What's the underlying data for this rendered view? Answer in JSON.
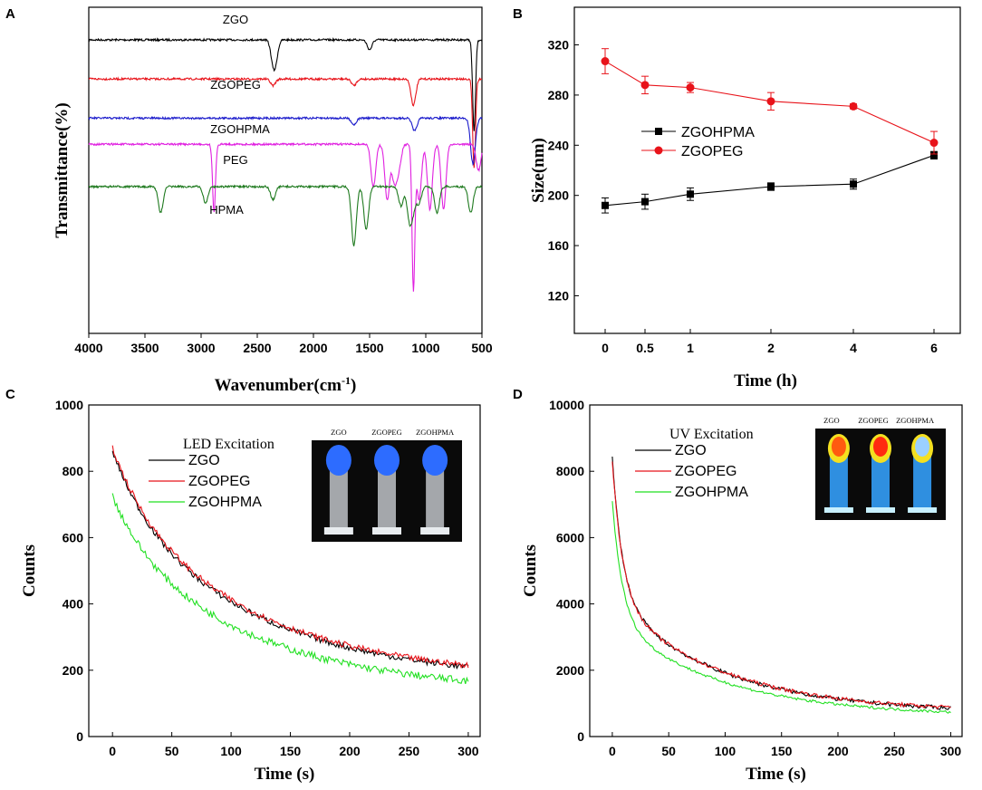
{
  "chart_data": [
    {
      "panel": "A",
      "type": "line",
      "title": "",
      "xlabel": "Wavenumber(cm",
      "xlabel_sup": "-1",
      "xlabel_close": ")",
      "ylabel": "Transmittance(%)",
      "xlim": [
        4000,
        500
      ],
      "x_ticks": [
        "4000",
        "3500",
        "3000",
        "2500",
        "2000",
        "1500",
        "1000",
        "500"
      ],
      "y_ticks_shown": false,
      "series": [
        {
          "name": "ZGO",
          "color": "#000000",
          "offset": 0.1,
          "dips": [
            [
              2360,
              0.06
            ],
            [
              2335,
              0.05
            ],
            [
              1500,
              0.03
            ],
            [
              570,
              0.28
            ]
          ]
        },
        {
          "name": "ZGOPEG",
          "color": "#e8131a",
          "offset": 0.22,
          "dips": [
            [
              2360,
              0.02
            ],
            [
              1110,
              0.08
            ],
            [
              1640,
              0.02
            ],
            [
              570,
              0.27
            ]
          ]
        },
        {
          "name": "ZGOHPMA",
          "color": "#1a1acb",
          "offset": 0.34,
          "dips": [
            [
              1100,
              0.04
            ],
            [
              1640,
              0.02
            ],
            [
              580,
              0.14
            ]
          ]
        },
        {
          "name": "PEG",
          "color": "#e020e0",
          "offset": 0.42,
          "dips": [
            [
              2885,
              0.21
            ],
            [
              1467,
              0.13
            ],
            [
              1343,
              0.17
            ],
            [
              1280,
              0.11
            ],
            [
              1240,
              0.07
            ],
            [
              1110,
              0.44
            ],
            [
              1060,
              0.17
            ],
            [
              963,
              0.2
            ],
            [
              842,
              0.2
            ],
            [
              530,
              0.08
            ]
          ]
        },
        {
          "name": "HPMA",
          "color": "#1f7a1f",
          "offset": 0.55,
          "dips": [
            [
              3360,
              0.08
            ],
            [
              2960,
              0.05
            ],
            [
              2360,
              0.04
            ],
            [
              1640,
              0.18
            ],
            [
              1530,
              0.13
            ],
            [
              1220,
              0.06
            ],
            [
              1145,
              0.1
            ],
            [
              1110,
              0.06
            ],
            [
              1060,
              0.05
            ],
            [
              900,
              0.08
            ],
            [
              600,
              0.08
            ]
          ]
        }
      ]
    },
    {
      "panel": "B",
      "type": "line",
      "title": "",
      "xlabel": "Time (h)",
      "ylabel": "Size(nm)",
      "ylim": [
        90,
        350
      ],
      "y_ticks": [
        120,
        160,
        200,
        240,
        280,
        320
      ],
      "categories": [
        "0",
        "0.5",
        "1",
        "2",
        "4",
        "6"
      ],
      "series": [
        {
          "name": "ZGOHPMA",
          "color": "#000000",
          "marker": "square",
          "values": [
            192,
            195,
            201,
            207,
            209,
            232
          ],
          "errors": [
            6,
            6,
            5,
            3,
            4,
            3
          ]
        },
        {
          "name": "ZGOPEG",
          "color": "#e8131a",
          "marker": "circle",
          "values": [
            307,
            288,
            286,
            275,
            271,
            242
          ],
          "errors": [
            10,
            7,
            4,
            7,
            2,
            9
          ]
        }
      ]
    },
    {
      "panel": "C",
      "type": "line",
      "title": "",
      "legend_title": "LED Excitation",
      "xlabel": "Time (s)",
      "ylabel": "Counts",
      "xlim": [
        -20,
        310
      ],
      "ylim": [
        0,
        1000
      ],
      "x_ticks": [
        0,
        50,
        100,
        150,
        200,
        250,
        300
      ],
      "y_ticks": [
        0,
        200,
        400,
        600,
        800,
        1000
      ],
      "series": [
        {
          "name": "ZGO",
          "color": "#000000",
          "y0": 860,
          "y_end": 210,
          "noise": 9
        },
        {
          "name": "ZGOPEG",
          "color": "#e8131a",
          "y0": 870,
          "y_end": 215,
          "noise": 9
        },
        {
          "name": "ZGOHPMA",
          "color": "#22e022",
          "y0": 725,
          "y_end": 168,
          "noise": 11
        }
      ],
      "inset_labels": [
        "ZGO",
        "ZGOPEG",
        "ZGOHPMA"
      ]
    },
    {
      "panel": "D",
      "type": "line",
      "title": "",
      "legend_title": "UV Excitation",
      "xlabel": "Time (s)",
      "ylabel": "Counts",
      "xlim": [
        -20,
        310
      ],
      "ylim": [
        0,
        10000
      ],
      "x_ticks": [
        0,
        50,
        100,
        150,
        200,
        250,
        300
      ],
      "y_ticks": [
        0,
        2000,
        4000,
        6000,
        8000,
        10000
      ],
      "series": [
        {
          "name": "ZGO",
          "color": "#000000",
          "y0": 8400,
          "y_end": 860,
          "noise": 60
        },
        {
          "name": "ZGOPEG",
          "color": "#e8131a",
          "y0": 8350,
          "y_end": 880,
          "noise": 60
        },
        {
          "name": "ZGOHPMA",
          "color": "#22e022",
          "y0": 7100,
          "y_end": 740,
          "noise": 40
        }
      ],
      "inset_labels": [
        "ZGO",
        "ZGOPEG",
        "ZGOHPMA"
      ]
    }
  ],
  "colors": {
    "axis": "#000000",
    "led_glow": "#2d6cff",
    "inset_bg": "#0a0a0a",
    "uv_bg": "#0a0a0a"
  }
}
